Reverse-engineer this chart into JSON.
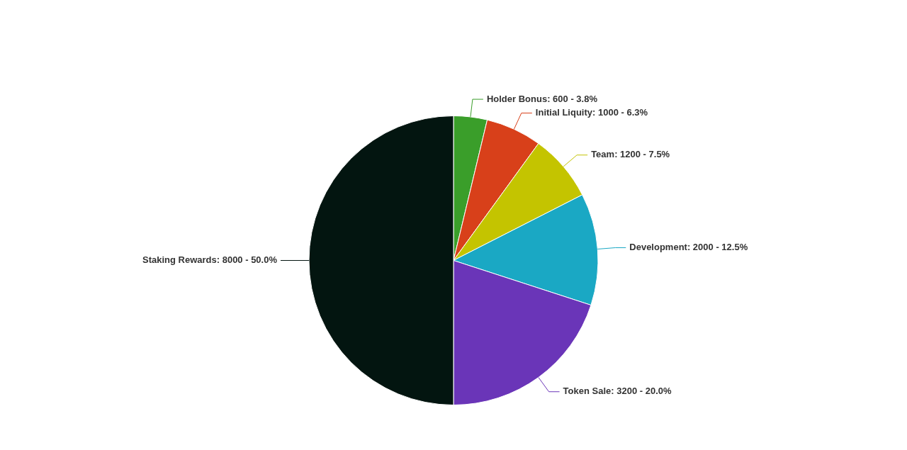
{
  "chart_data": {
    "type": "pie",
    "categories": [
      "Holder Bonus",
      "Initial Liquity",
      "Team",
      "Development",
      "Token Sale",
      "Staking Rewards"
    ],
    "values": [
      600,
      1000,
      1200,
      2000,
      3200,
      8000
    ],
    "value_labels": [
      "600 - 3.8%",
      "1000 - 6.3%",
      "1200 - 7.5%",
      "2000 - 12.5%",
      "3200 - 20.0%",
      "8000 - 50.0%"
    ],
    "colors": [
      "#3a9e2a",
      "#d8401a",
      "#c4c400",
      "#1aa8c4",
      "#6a35b8",
      "#031510"
    ],
    "legend": false
  }
}
